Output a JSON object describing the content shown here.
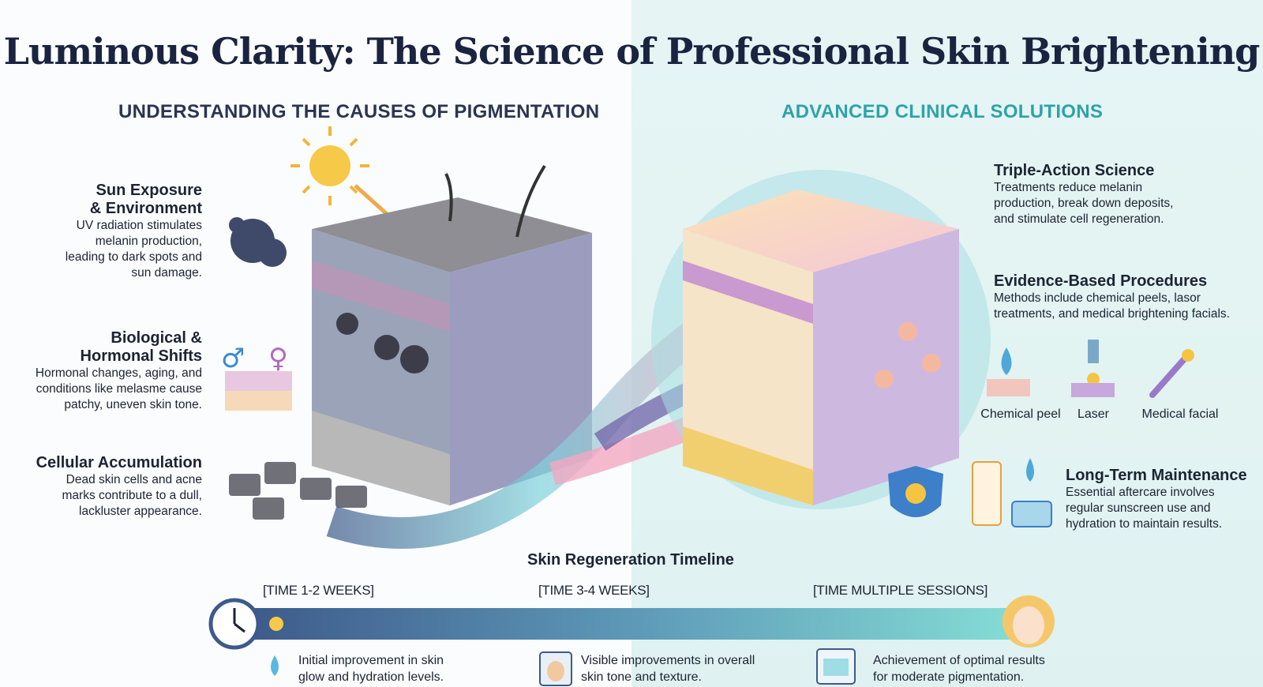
{
  "title": "Luminous Clarity: The Science of Professional Skin Brightening",
  "left": {
    "heading": "UNDERSTANDING THE CAUSES OF PIGMENTATION",
    "items": [
      {
        "title_1": "Sun Exposure",
        "title_2": "& Environment",
        "text": [
          "UV radiation stimulates",
          "melanin production,",
          "leading to dark spots and",
          "sun damage."
        ]
      },
      {
        "title_1": "Biological &",
        "title_2": "Hormonal Shifts",
        "text": [
          "Hormonal changes, aging, and",
          "conditions like melasme cause",
          "patchy, uneven skin tone."
        ]
      },
      {
        "title_1": "Cellular Accumulation",
        "title_2": "",
        "text": [
          "Dead skin cells and acne",
          "marks contribute to a dull,",
          "lackluster appearance."
        ]
      }
    ]
  },
  "right": {
    "heading": "ADVANCED CLINICAL SOLUTIONS",
    "items": [
      {
        "title": "Triple-Action Science",
        "text": [
          "Treatments reduce melanin",
          "production, break down deposits,",
          "and stimulate cell regeneration."
        ]
      },
      {
        "title": "Evidence-Based Procedures",
        "text": [
          "Methods include chemical peels, lasor",
          "treatments, and medical brightening facials."
        ]
      },
      {
        "title": "Long-Term Maintenance",
        "text": [
          "Essential aftercare involves",
          "regular sunscreen use and",
          "hydration to maintain results."
        ]
      }
    ],
    "procedures": [
      "Chemical peel",
      "Laser",
      "Medical facial"
    ]
  },
  "timeline": {
    "title": "Skin Regeneration Timeline",
    "stages": [
      {
        "label": "[TIME 1-2 WEEKS]",
        "text": [
          "Initial improvement in skin",
          "glow and hydration levels."
        ],
        "icon": "water-drop-icon"
      },
      {
        "label": "[TIME 3-4 WEEKS]",
        "text": [
          "Visible improvements in overall",
          "skin tone and texture."
        ],
        "icon": "calendar-face-icon"
      },
      {
        "label": "[TIME MULTIPLE SESSIONS]",
        "text": [
          "Achievement of optimal results",
          "for moderate pigmentation."
        ],
        "icon": "calendar-icon"
      }
    ]
  },
  "colors": {
    "title": "#1a2340",
    "left_heading": "#2a3550",
    "right_heading": "#2ea3a8",
    "right_bg": "#e2f4f3",
    "timeline_start": "#3d5a8a",
    "timeline_end": "#7fdcd4"
  }
}
